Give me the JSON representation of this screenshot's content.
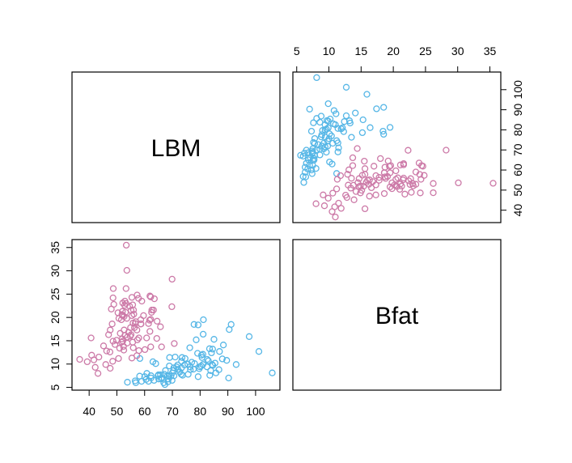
{
  "chart_data": {
    "type": "scatter",
    "variables": [
      "LBM",
      "Bfat"
    ],
    "group_colors": [
      "#55B6E6",
      "#CC79A7"
    ],
    "axes": {
      "LBM": {
        "ticks": [
          40,
          50,
          60,
          70,
          80,
          90,
          100
        ]
      },
      "Bfat": {
        "ticks": [
          5,
          10,
          15,
          20,
          25,
          30,
          35
        ]
      }
    },
    "series": [
      {
        "color": "#55B6E6",
        "points": [
          [
            63.0,
            10.5
          ],
          [
            58.3,
            11.2
          ],
          [
            74.4,
            9.8
          ],
          [
            76.3,
            13.5
          ],
          [
            70.0,
            8.1
          ],
          [
            77.0,
            10.4
          ],
          [
            68.2,
            7.4
          ],
          [
            84.1,
            12.4
          ],
          [
            70.4,
            8.6
          ],
          [
            73.3,
            9.2
          ],
          [
            89.6,
            10.8
          ],
          [
            78.6,
            15.2
          ],
          [
            81.2,
            19.5
          ],
          [
            72.0,
            8.9
          ],
          [
            70.6,
            7.5
          ],
          [
            82.6,
            11.0
          ],
          [
            66.9,
            6.0
          ],
          [
            81.0,
            12.1
          ],
          [
            79.3,
            7.3
          ],
          [
            66.2,
            7.1
          ],
          [
            65.1,
            6.8
          ],
          [
            71.5,
            9.4
          ],
          [
            69.9,
            6.5
          ],
          [
            88.0,
            11.1
          ],
          [
            67.5,
            8.6
          ],
          [
            56.8,
            6.0
          ],
          [
            62.3,
            7.5
          ],
          [
            70.5,
            9.2
          ],
          [
            60.8,
            8.0
          ],
          [
            84.5,
            13.2
          ],
          [
            75.7,
            7.8
          ],
          [
            90.5,
            17.4
          ],
          [
            73.2,
            7.8
          ],
          [
            85.0,
            15.3
          ],
          [
            97.7,
            15.9
          ],
          [
            79.9,
            9.4
          ],
          [
            68.4,
            6.2
          ],
          [
            77.6,
            8.9
          ],
          [
            83.4,
            13.3
          ],
          [
            87.0,
            12.7
          ],
          [
            81.1,
            16.4
          ],
          [
            80.4,
            9.6
          ],
          [
            56.6,
            6.4
          ],
          [
            65.0,
            7.7
          ],
          [
            63.4,
            6.5
          ],
          [
            61.4,
            6.3
          ],
          [
            101.2,
            12.7
          ],
          [
            69.5,
            7.4
          ],
          [
            75.6,
            10.0
          ],
          [
            74.6,
            11.2
          ],
          [
            65.7,
            7.7
          ],
          [
            82.5,
            9.4
          ],
          [
            86.8,
            8.8
          ],
          [
            68.6,
            6.8
          ],
          [
            79.1,
            12.3
          ],
          [
            58.9,
            6.3
          ],
          [
            71.9,
            9.8
          ],
          [
            85.4,
            10.2
          ],
          [
            77.8,
            18.5
          ],
          [
            67.3,
            5.6
          ],
          [
            88.4,
            14.1
          ],
          [
            73.3,
            10.6
          ],
          [
            83.8,
            8.6
          ],
          [
            106.0,
            8.1
          ],
          [
            71.0,
            11.5
          ],
          [
            81.0,
            9.9
          ],
          [
            62.3,
            7.0
          ],
          [
            79.7,
            9.0
          ],
          [
            80.7,
            11.4
          ],
          [
            64.0,
            10.1
          ],
          [
            90.3,
            7.0
          ],
          [
            76.5,
            8.8
          ],
          [
            93.0,
            9.9
          ],
          [
            67.1,
            7.8
          ],
          [
            79.3,
            18.4
          ],
          [
            83.0,
            10.7
          ],
          [
            60.0,
            7.3
          ],
          [
            73.7,
            7.6
          ],
          [
            84.3,
            9.9
          ],
          [
            68.9,
            9.6
          ],
          [
            53.8,
            6.1
          ],
          [
            58.2,
            7.4
          ],
          [
            64.8,
            7.5
          ],
          [
            60.5,
            6.7
          ],
          [
            91.2,
            18.5
          ],
          [
            73.5,
            11.4
          ],
          [
            68.8,
            7.5
          ],
          [
            85.7,
            8.1
          ],
          [
            76.4,
            9.4
          ],
          [
            69.0,
            11.4
          ],
          [
            78.0,
            10.1
          ],
          [
            72.7,
            8.3
          ],
          [
            83.5,
            7.6
          ],
          [
            80.5,
            11.9
          ],
          [
            84.6,
            9.7
          ],
          [
            66.0,
            6.8
          ]
        ]
      },
      {
        "color": "#CC79A7",
        "points": [
          [
            53.6,
            19.8
          ],
          [
            52.0,
            21.3
          ],
          [
            55.8,
            18.8
          ],
          [
            51.0,
            13.4
          ],
          [
            61.9,
            24.6
          ],
          [
            56.3,
            17.8
          ],
          [
            57.9,
            12.9
          ],
          [
            49.3,
            14.2
          ],
          [
            64.5,
            19.2
          ],
          [
            62.6,
            21.6
          ],
          [
            51.9,
            15.4
          ],
          [
            62.2,
            24.4
          ],
          [
            56.6,
            18.7
          ],
          [
            52.1,
            14.9
          ],
          [
            55.4,
            11.3
          ],
          [
            59.0,
            23.5
          ],
          [
            57.3,
            24.8
          ],
          [
            49.9,
            15.1
          ],
          [
            53.7,
            14.5
          ],
          [
            52.4,
            13.8
          ],
          [
            61.9,
            17.0
          ],
          [
            46.3,
            12.8
          ],
          [
            52.6,
            17.3
          ],
          [
            56.0,
            21.6
          ],
          [
            57.8,
            24.1
          ],
          [
            52.1,
            20.4
          ],
          [
            50.7,
            19.8
          ],
          [
            50.6,
            11.2
          ],
          [
            46.0,
            9.9
          ],
          [
            47.0,
            16.3
          ],
          [
            53.6,
            30.1
          ],
          [
            52.8,
            22.6
          ],
          [
            65.7,
            18.0
          ],
          [
            48.7,
            26.2
          ],
          [
            55.4,
            24.3
          ],
          [
            63.5,
            24.0
          ],
          [
            55.1,
            21.5
          ],
          [
            63.2,
            21.6
          ],
          [
            54.8,
            16.0
          ],
          [
            55.7,
            22.7
          ],
          [
            48.9,
            22.8
          ],
          [
            54.2,
            16.8
          ],
          [
            36.6,
            11.0
          ],
          [
            51.6,
            19.5
          ],
          [
            62.2,
            19.6
          ],
          [
            53.3,
            23.0
          ],
          [
            51.8,
            20.6
          ],
          [
            57.2,
            11.8
          ],
          [
            62.5,
            21.1
          ],
          [
            53.3,
            26.2
          ],
          [
            58.6,
            19.5
          ],
          [
            69.9,
            28.2
          ],
          [
            55.1,
            16.3
          ],
          [
            51.7,
            14.7
          ],
          [
            55.7,
            14.7
          ],
          [
            48.6,
            14.9
          ],
          [
            52.9,
            23.5
          ],
          [
            70.7,
            14.4
          ],
          [
            41.7,
            10.9
          ],
          [
            58.6,
            18.6
          ],
          [
            60.7,
            15.6
          ],
          [
            58.7,
            18.6
          ],
          [
            66.1,
            13.7
          ],
          [
            47.6,
            9.1
          ],
          [
            56.1,
            20.7
          ],
          [
            51.2,
            16.6
          ],
          [
            50.4,
            21.0
          ],
          [
            40.7,
            15.6
          ],
          [
            45.2,
            13.9
          ],
          [
            57.2,
            17.3
          ],
          [
            64.4,
            15.5
          ],
          [
            43.5,
            11.5
          ],
          [
            39.3,
            10.5
          ],
          [
            56.8,
            19.1
          ],
          [
            62.2,
            13.7
          ],
          [
            53.8,
            15.8
          ],
          [
            47.6,
            17.3
          ],
          [
            52.6,
            20.2
          ],
          [
            42.2,
            9.3
          ],
          [
            53.1,
            21.1
          ],
          [
            61.8,
            19.4
          ],
          [
            52.1,
            23.1
          ],
          [
            61.4,
            18.7
          ],
          [
            48.5,
            10.6
          ],
          [
            54.6,
            22.4
          ],
          [
            47.5,
            12.6
          ],
          [
            57.4,
            15.2
          ],
          [
            40.9,
            11.9
          ],
          [
            52.5,
            13.0
          ],
          [
            55.9,
            13.5
          ],
          [
            69.8,
            22.3
          ],
          [
            48.0,
            21.8
          ],
          [
            54.9,
            17.8
          ],
          [
            43.2,
            8.0
          ],
          [
            59.6,
            20.4
          ],
          [
            48.6,
            24.2
          ],
          [
            52.9,
            16.2
          ],
          [
            57.9,
            15.6
          ],
          [
            55.4,
            20.4
          ],
          [
            53.4,
            35.5
          ],
          [
            48.3,
            18.6
          ],
          [
            60.1,
            13.1
          ]
        ]
      }
    ]
  }
}
